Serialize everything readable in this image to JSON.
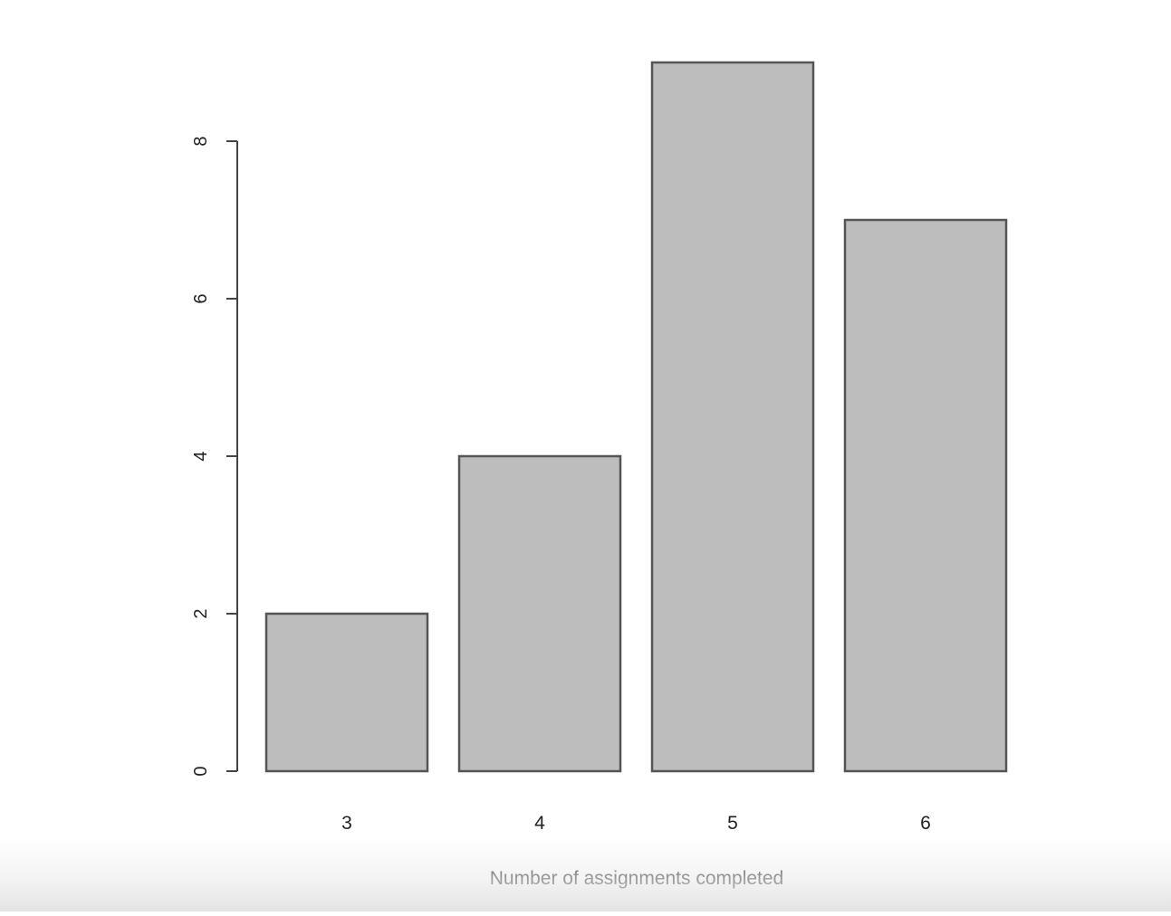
{
  "chart_data": {
    "type": "bar",
    "title": "",
    "xlabel": "Number of assignments completed",
    "ylabel": "",
    "categories": [
      "3",
      "4",
      "5",
      "6"
    ],
    "values": [
      2,
      4,
      9,
      7
    ],
    "ylim": [
      0,
      9
    ],
    "yticks": [
      0,
      2,
      4,
      6,
      8
    ],
    "grid": false,
    "legend": "none",
    "bar_fill": "#bdbdbd",
    "bar_stroke": "#555555",
    "axis_color": "#444444"
  }
}
